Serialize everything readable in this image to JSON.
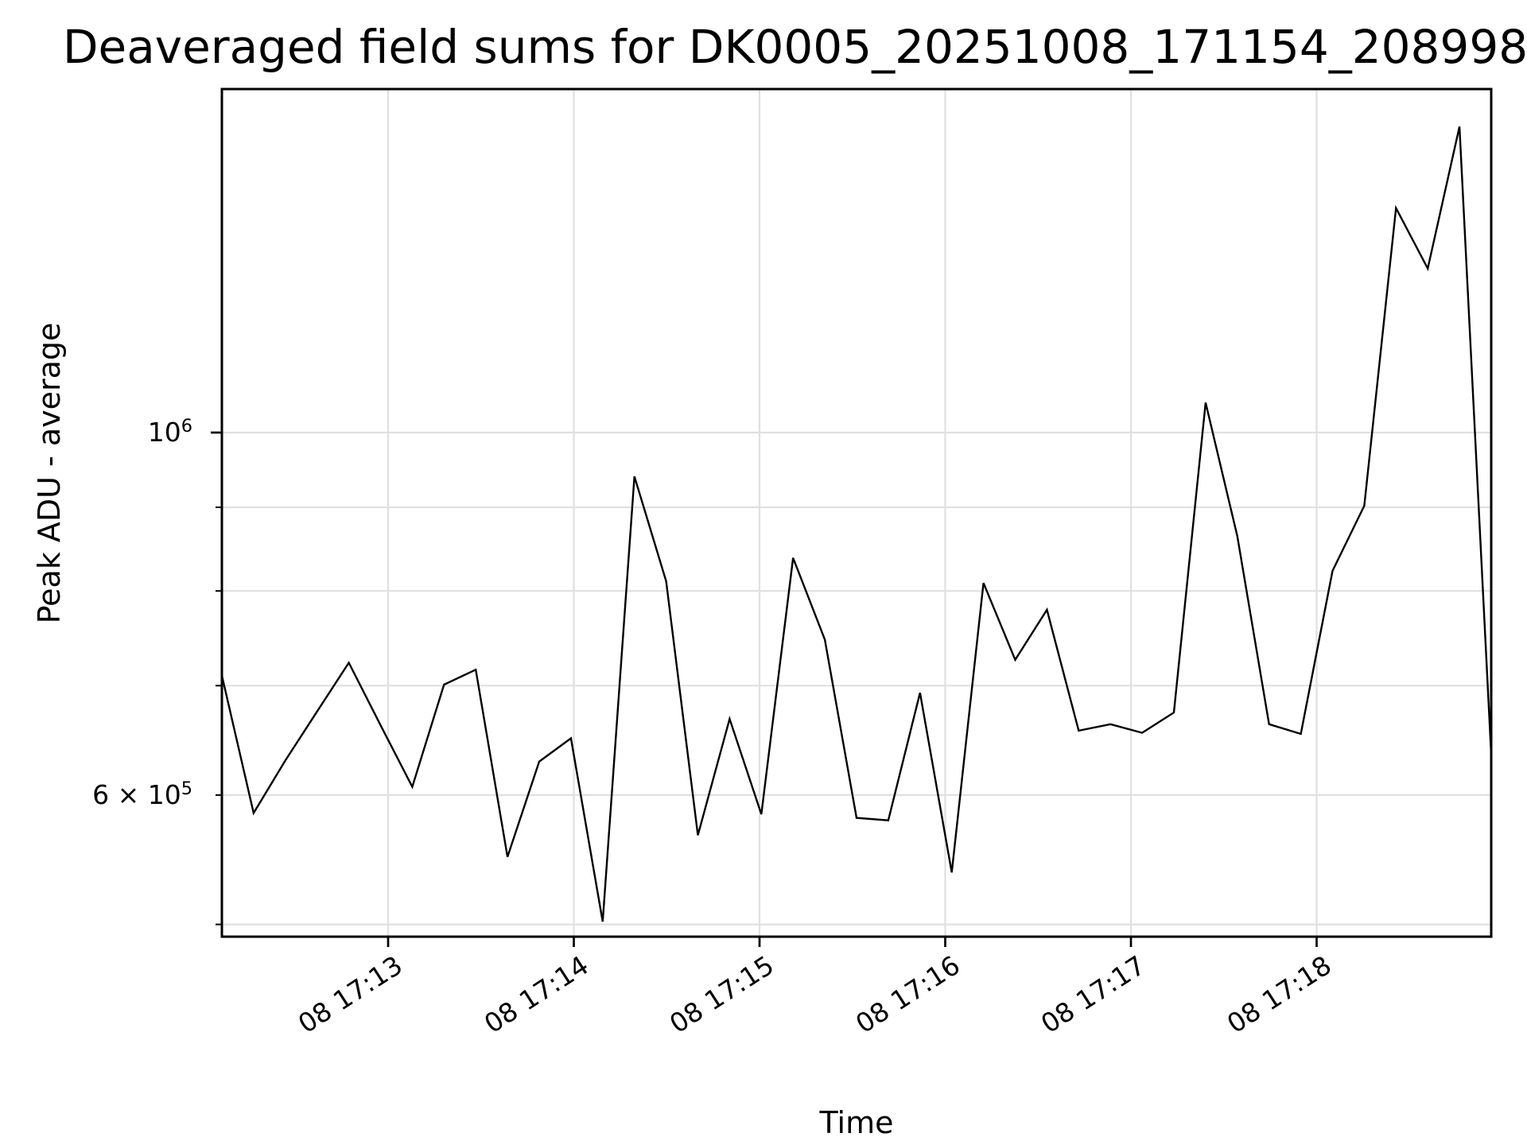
{
  "title": "Deaveraged field sums for DK0005_20251008_171154_208998",
  "axes": {
    "xlabel": "Time",
    "ylabel": "Peak ADU - average",
    "x_ticks": [
      "08 17:13",
      "08 17:14",
      "08 17:15",
      "08 17:16",
      "08 17:17",
      "08 17:18"
    ],
    "y_major": {
      "base": "10",
      "exp": "6"
    },
    "y_minor_labeled": {
      "coeff": "6 × ",
      "base": "10",
      "exp": "5"
    }
  },
  "chart_data": {
    "type": "line",
    "title": "Deaveraged field sums for DK0005_20251008_171154_208998",
    "xlabel": "Time",
    "ylabel": "Peak ADU - average",
    "yscale": "log",
    "grid": true,
    "legend": "none",
    "line_color": "#000000",
    "grid_color": "#e0e0e0",
    "background_color": "#ffffff",
    "x_tick_labels": [
      "08 17:13",
      "08 17:14",
      "08 17:15",
      "08 17:16",
      "08 17:17",
      "08 17:18"
    ],
    "y_tick_labels": [
      "10^6",
      "6 x 10^5"
    ],
    "y_gridline_values": [
      1000000,
      900000,
      800000,
      700000,
      600000,
      500000
    ],
    "ylim": [
      492000,
      1623000
    ],
    "times": [
      "17:12:06",
      "17:12:16",
      "17:12:27",
      "17:12:37",
      "17:12:47",
      "17:12:57",
      "17:13:07",
      "17:13:18",
      "17:13:28",
      "17:13:38",
      "17:13:49",
      "17:13:59",
      "17:14:09",
      "17:14:19",
      "17:14:30",
      "17:14:40",
      "17:14:50",
      "17:15:00",
      "17:15:11",
      "17:15:21",
      "17:15:31",
      "17:15:41",
      "17:15:52",
      "17:16:02",
      "17:16:12",
      "17:16:22",
      "17:16:33",
      "17:16:43",
      "17:16:53",
      "17:17:03",
      "17:17:13",
      "17:17:24",
      "17:17:34",
      "17:17:44",
      "17:17:54",
      "17:18:05",
      "17:18:15",
      "17:18:25",
      "17:18:35",
      "17:18:46",
      "17:18:56"
    ],
    "values": [
      710000,
      585000,
      630000,
      675000,
      723000,
      662000,
      607000,
      701000,
      716000,
      550000,
      629000,
      650000,
      502000,
      940000,
      811000,
      567000,
      668000,
      584000,
      838000,
      747000,
      581000,
      579000,
      693000,
      538000,
      809000,
      726000,
      779000,
      657000,
      663000,
      655000,
      674000,
      1043000,
      864000,
      663000,
      654000,
      823000,
      902000,
      1372000,
      1260000,
      1539000,
      635000
    ]
  }
}
